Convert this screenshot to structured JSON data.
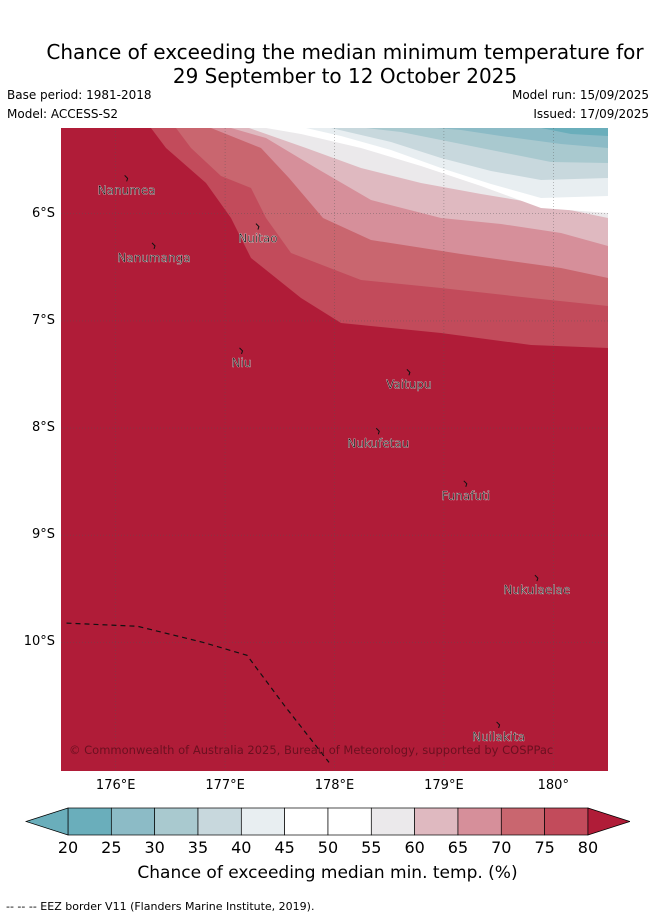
{
  "header": {
    "title_line1": "Chance of exceeding the median minimum temperature for",
    "title_line2": "29 September to 12 October 2025",
    "base_period": "Base period: 1981-2018",
    "model": "Model: ACCESS-S2",
    "model_run": "Model run: 15/09/2025",
    "issued": "Issued: 17/09/2025"
  },
  "map": {
    "lon_range": [
      175.5,
      180.5
    ],
    "lat_range": [
      -11.2,
      -5.2
    ],
    "lon_ticks": [
      {
        "value": 176,
        "label": "176°E"
      },
      {
        "value": 177,
        "label": "177°E"
      },
      {
        "value": 178,
        "label": "178°E"
      },
      {
        "value": 179,
        "label": "179°E"
      },
      {
        "value": 180,
        "label": "180°"
      }
    ],
    "lat_ticks": [
      {
        "value": -6,
        "label": "6°S"
      },
      {
        "value": -7,
        "label": "7°S"
      },
      {
        "value": -8,
        "label": "8°S"
      },
      {
        "value": -9,
        "label": "9°S"
      },
      {
        "value": -10,
        "label": "10°S"
      }
    ],
    "background_color": "#b01c38",
    "islands": [
      {
        "name": "Nanumea",
        "lon": 176.1,
        "lat": -5.67
      },
      {
        "name": "Nuitao",
        "lon": 177.3,
        "lat": -6.12
      },
      {
        "name": "Nanumanga",
        "lon": 176.35,
        "lat": -6.3
      },
      {
        "name": "Niu",
        "lon": 177.15,
        "lat": -7.28
      },
      {
        "name": "Vaitupu",
        "lon": 178.68,
        "lat": -7.48
      },
      {
        "name": "Nukufetau",
        "lon": 178.4,
        "lat": -8.03
      },
      {
        "name": "Funafuti",
        "lon": 179.2,
        "lat": -8.52
      },
      {
        "name": "Nukulaelae",
        "lon": 179.85,
        "lat": -9.4
      },
      {
        "name": "Nuilakita",
        "lon": 179.5,
        "lat": -10.77
      }
    ],
    "eez_border": [
      {
        "lon": 175.55,
        "lat": -9.82
      },
      {
        "lon": 176.2,
        "lat": -9.85
      },
      {
        "lon": 176.8,
        "lat": -10.0
      },
      {
        "lon": 177.2,
        "lat": -10.12
      },
      {
        "lon": 177.55,
        "lat": -10.6
      },
      {
        "lon": 177.95,
        "lat": -11.12
      }
    ],
    "copyright": "© Commonwealth of Australia 2025, Bureau of Meteorology, supported by COSPPac"
  },
  "colorbar": {
    "ticks": [
      "20",
      "25",
      "30",
      "35",
      "40",
      "45",
      "50",
      "55",
      "60",
      "65",
      "70",
      "75",
      "80"
    ],
    "colors": [
      "#6aaebb",
      "#8cbbc6",
      "#a9c9cf",
      "#c8d8dd",
      "#e8eef1",
      "#ffffff",
      "#ffffff",
      "#ebe9eb",
      "#dfb9c0",
      "#d68f9a",
      "#c9666f",
      "#c24b5b",
      "#b01c38"
    ],
    "label": "Chance of exceeding median min. temp. (%)"
  },
  "footer": {
    "legend": "-- -- -- EEZ border V11 (Flanders Marine Institute, 2019)."
  }
}
